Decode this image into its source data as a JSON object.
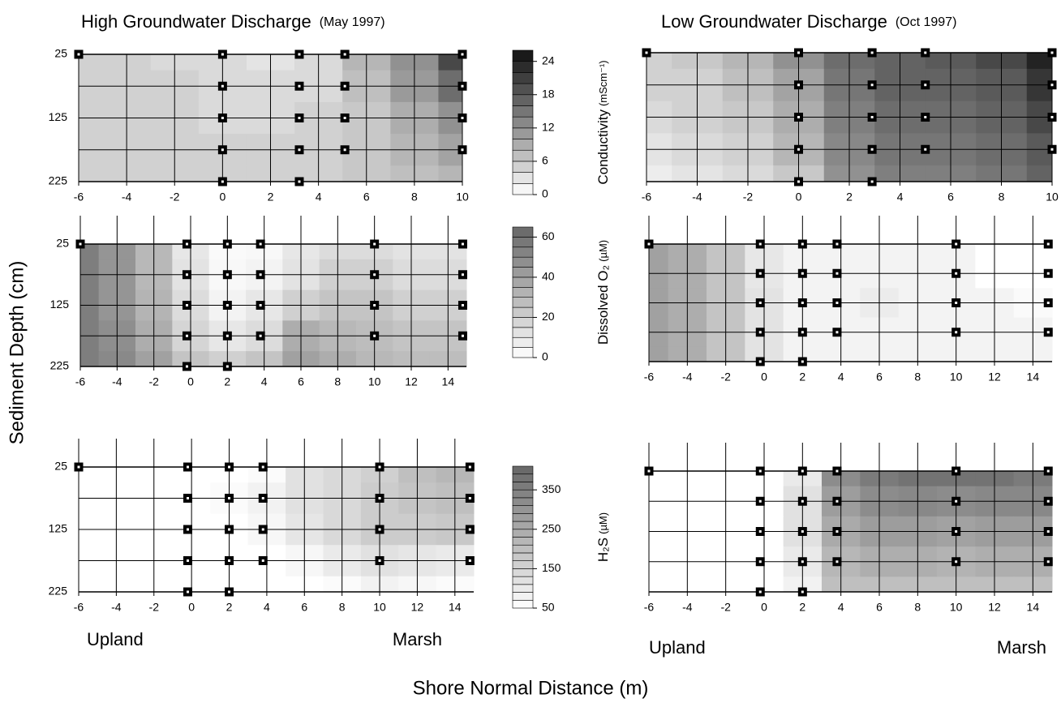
{
  "figure": {
    "y_label": "Sediment Depth (cm)",
    "x_label": "Shore Normal Distance (m)"
  },
  "chart_data": [
    {
      "type": "contour",
      "title": "High Groundwater Discharge",
      "subtitle": "(May 1997)",
      "xlim": [
        -6,
        10
      ],
      "ylim": [
        225,
        25
      ],
      "xticks": [
        -6,
        -4,
        -2,
        0,
        2,
        4,
        6,
        8,
        10
      ],
      "yticks": [
        25,
        125,
        225
      ],
      "ygrid": [
        25,
        75,
        125,
        175,
        225
      ],
      "colorbar": {
        "title": "Conductivity",
        "unit": "(mScm⁻¹)",
        "lim": [
          0,
          26
        ],
        "step": 2,
        "ticks": [
          0,
          6,
          12,
          18,
          24
        ],
        "colors": [
          "#ffffff",
          "#111111"
        ]
      },
      "field": {
        "x": [
          -6,
          -4,
          -2,
          0,
          2,
          4,
          6,
          8,
          10
        ],
        "depth": [
          25,
          75,
          125,
          175,
          225
        ],
        "values": [
          [
            5,
            5,
            4,
            4,
            3,
            4,
            8,
            12,
            20
          ],
          [
            5,
            5,
            5,
            4,
            4,
            4,
            7,
            11,
            16
          ],
          [
            5,
            5,
            5,
            4,
            4,
            5,
            6,
            9,
            12
          ],
          [
            5,
            5,
            5,
            5,
            5,
            5,
            6,
            8,
            10
          ],
          [
            5,
            5,
            5,
            5,
            5,
            5,
            6,
            7,
            8
          ]
        ]
      },
      "points": {
        "x": [
          -6,
          0,
          0,
          0,
          0,
          0,
          3.2,
          3.2,
          3.2,
          3.2,
          3.2,
          5.1,
          5.1,
          5.1,
          5.1,
          10,
          10,
          10,
          10
        ],
        "depth": [
          25,
          25,
          75,
          125,
          175,
          225,
          25,
          75,
          125,
          175,
          225,
          25,
          75,
          125,
          175,
          25,
          75,
          125,
          175
        ]
      }
    },
    {
      "type": "contour",
      "title": "Low Groundwater Discharge",
      "subtitle": "(Oct 1997)",
      "xlim": [
        -6,
        10
      ],
      "ylim": [
        225,
        25
      ],
      "xticks": [
        -6,
        -4,
        -2,
        0,
        2,
        4,
        6,
        8,
        10
      ],
      "ygrid": [
        25,
        75,
        125,
        175,
        225
      ],
      "field": {
        "x": [
          -6,
          -4,
          -2,
          0,
          2,
          4,
          6,
          8,
          10
        ],
        "depth": [
          25,
          75,
          125,
          175,
          225
        ],
        "values": [
          [
            5,
            6,
            8,
            12,
            16,
            17,
            18,
            20,
            24
          ],
          [
            5,
            5,
            7,
            10,
            15,
            17,
            17,
            18,
            22
          ],
          [
            4,
            5,
            6,
            9,
            14,
            16,
            16,
            17,
            20
          ],
          [
            3,
            4,
            5,
            8,
            13,
            15,
            15,
            16,
            18
          ],
          [
            2,
            3,
            4,
            6,
            12,
            14,
            14,
            15,
            17
          ]
        ]
      },
      "points": {
        "x": [
          -6,
          0,
          0,
          0,
          0,
          0,
          2.9,
          2.9,
          2.9,
          2.9,
          2.9,
          5,
          5,
          5,
          5,
          10,
          10,
          10,
          10
        ],
        "depth": [
          25,
          25,
          75,
          125,
          175,
          225,
          25,
          75,
          125,
          175,
          225,
          25,
          75,
          125,
          175,
          25,
          75,
          125,
          175
        ]
      }
    },
    {
      "type": "contour",
      "xlim": [
        -6,
        15
      ],
      "ylim": [
        225,
        25
      ],
      "xticks": [
        -6,
        -4,
        -2,
        0,
        2,
        4,
        6,
        8,
        10,
        12,
        14
      ],
      "yticks": [
        25,
        125,
        225
      ],
      "ygrid": [
        25,
        75,
        125,
        175,
        225
      ],
      "colorbar": {
        "title": "Dissolved O₂",
        "unit": "(µM)",
        "lim": [
          0,
          65
        ],
        "step": 5,
        "ticks": [
          0,
          20,
          40,
          60
        ],
        "colors": [
          "#ffffff",
          "#666666"
        ]
      },
      "field": {
        "x": [
          -6,
          -4,
          -2,
          0,
          2,
          4,
          6,
          8,
          10,
          12,
          14
        ],
        "depth": [
          25,
          75,
          125,
          175,
          225
        ],
        "values": [
          [
            55,
            45,
            30,
            10,
            2,
            3,
            10,
            15,
            15,
            12,
            12
          ],
          [
            55,
            45,
            30,
            12,
            3,
            5,
            12,
            20,
            20,
            15,
            15
          ],
          [
            55,
            45,
            32,
            15,
            5,
            10,
            20,
            25,
            25,
            20,
            20
          ],
          [
            55,
            48,
            35,
            18,
            10,
            15,
            35,
            30,
            28,
            25,
            25
          ],
          [
            55,
            50,
            40,
            25,
            20,
            25,
            40,
            35,
            30,
            28,
            28
          ]
        ]
      },
      "points": {
        "x": [
          -6,
          -0.2,
          -0.2,
          -0.2,
          -0.2,
          -0.2,
          2,
          2,
          2,
          2,
          2,
          3.8,
          3.8,
          3.8,
          3.8,
          10,
          10,
          10,
          10,
          14.8,
          14.8,
          14.8,
          14.8
        ],
        "depth": [
          25,
          25,
          75,
          125,
          175,
          225,
          25,
          75,
          125,
          175,
          225,
          25,
          75,
          125,
          175,
          25,
          75,
          125,
          175,
          25,
          75,
          125,
          175
        ]
      }
    },
    {
      "type": "contour",
      "xlim": [
        -6,
        15
      ],
      "ylim": [
        225,
        25
      ],
      "xticks": [
        -6,
        -4,
        -2,
        0,
        2,
        4,
        6,
        8,
        10,
        12,
        14
      ],
      "ygrid": [
        25,
        75,
        125,
        175,
        225
      ],
      "field": {
        "x": [
          -6,
          -4,
          -2,
          0,
          2,
          4,
          6,
          8,
          10,
          12,
          14
        ],
        "depth": [
          25,
          75,
          125,
          175,
          225
        ],
        "values": [
          [
            40,
            35,
            25,
            10,
            5,
            5,
            5,
            5,
            5,
            0,
            0
          ],
          [
            40,
            35,
            25,
            10,
            5,
            5,
            5,
            5,
            5,
            0,
            0
          ],
          [
            40,
            35,
            25,
            12,
            5,
            5,
            8,
            5,
            5,
            5,
            2
          ],
          [
            40,
            35,
            25,
            12,
            5,
            5,
            5,
            5,
            5,
            5,
            5
          ],
          [
            40,
            35,
            25,
            12,
            5,
            5,
            5,
            5,
            5,
            5,
            5
          ]
        ]
      },
      "points": {
        "x": [
          -6,
          -0.2,
          -0.2,
          -0.2,
          -0.2,
          -0.2,
          2,
          2,
          2,
          2,
          2,
          3.8,
          3.8,
          3.8,
          3.8,
          10,
          10,
          10,
          10,
          14.8,
          14.8,
          14.8,
          14.8
        ],
        "depth": [
          25,
          25,
          75,
          125,
          175,
          225,
          25,
          75,
          125,
          175,
          225,
          25,
          75,
          125,
          175,
          25,
          75,
          125,
          175,
          25,
          75,
          125,
          175
        ]
      }
    },
    {
      "type": "contour",
      "xlim": [
        -6,
        15
      ],
      "ylim": [
        225,
        25
      ],
      "xticks": [
        -6,
        -4,
        -2,
        0,
        2,
        4,
        6,
        8,
        10,
        12,
        14
      ],
      "yticks": [
        25,
        125,
        225
      ],
      "ygrid": [
        25,
        75,
        125,
        175,
        225
      ],
      "colorbar": {
        "title": "H₂S",
        "unit": "(µM)",
        "lim": [
          50,
          410
        ],
        "step": 20,
        "ticks": [
          50,
          150,
          250,
          350
        ],
        "colors": [
          "#ffffff",
          "#666666"
        ]
      },
      "annotations": [
        "Upland",
        "Marsh"
      ],
      "field": {
        "x": [
          -6,
          -4,
          -2,
          0,
          2,
          4,
          6,
          8,
          10,
          12,
          14
        ],
        "depth": [
          25,
          75,
          125,
          175,
          225
        ],
        "values": [
          [
            50,
            50,
            50,
            50,
            50,
            60,
            120,
            140,
            160,
            200,
            220
          ],
          [
            50,
            50,
            50,
            50,
            60,
            80,
            120,
            140,
            170,
            190,
            200
          ],
          [
            50,
            50,
            50,
            50,
            50,
            70,
            110,
            140,
            170,
            170,
            180
          ],
          [
            50,
            50,
            50,
            50,
            50,
            50,
            70,
            100,
            120,
            110,
            100
          ],
          [
            50,
            50,
            50,
            50,
            50,
            50,
            50,
            60,
            80,
            70,
            60
          ]
        ]
      },
      "points": {
        "x": [
          -6,
          -0.2,
          -0.2,
          -0.2,
          -0.2,
          -0.2,
          2,
          2,
          2,
          2,
          2,
          3.8,
          3.8,
          3.8,
          3.8,
          10,
          10,
          10,
          10,
          14.8,
          14.8,
          14.8,
          14.8
        ],
        "depth": [
          25,
          25,
          75,
          125,
          175,
          225,
          25,
          75,
          125,
          175,
          225,
          25,
          75,
          125,
          175,
          25,
          75,
          125,
          175,
          25,
          75,
          125,
          175
        ]
      }
    },
    {
      "type": "contour",
      "xlim": [
        -6,
        15
      ],
      "ylim": [
        225,
        25
      ],
      "xticks": [
        -6,
        -4,
        -2,
        0,
        2,
        4,
        6,
        8,
        10,
        12,
        14
      ],
      "ygrid": [
        25,
        75,
        125,
        175,
        225
      ],
      "annotations": [
        "Upland",
        "Marsh"
      ],
      "field": {
        "x": [
          -6,
          -4,
          -2,
          0,
          2,
          4,
          6,
          8,
          10,
          12,
          14
        ],
        "depth": [
          25,
          75,
          125,
          175,
          225
        ],
        "values": [
          [
            50,
            50,
            50,
            50,
            100,
            320,
            360,
            380,
            380,
            380,
            360
          ],
          [
            50,
            50,
            50,
            50,
            120,
            280,
            320,
            330,
            320,
            330,
            330
          ],
          [
            50,
            50,
            50,
            50,
            120,
            250,
            280,
            280,
            270,
            280,
            280
          ],
          [
            50,
            50,
            50,
            50,
            100,
            220,
            240,
            240,
            230,
            240,
            240
          ],
          [
            50,
            50,
            50,
            50,
            80,
            200,
            200,
            200,
            200,
            200,
            200
          ]
        ]
      },
      "points": {
        "x": [
          -6,
          -0.2,
          -0.2,
          -0.2,
          -0.2,
          -0.2,
          2,
          2,
          2,
          2,
          2,
          3.8,
          3.8,
          3.8,
          3.8,
          10,
          10,
          10,
          10,
          14.8,
          14.8,
          14.8,
          14.8
        ],
        "depth": [
          25,
          25,
          75,
          125,
          175,
          225,
          25,
          75,
          125,
          175,
          225,
          25,
          75,
          125,
          175,
          25,
          75,
          125,
          175,
          25,
          75,
          125,
          175
        ]
      }
    }
  ]
}
